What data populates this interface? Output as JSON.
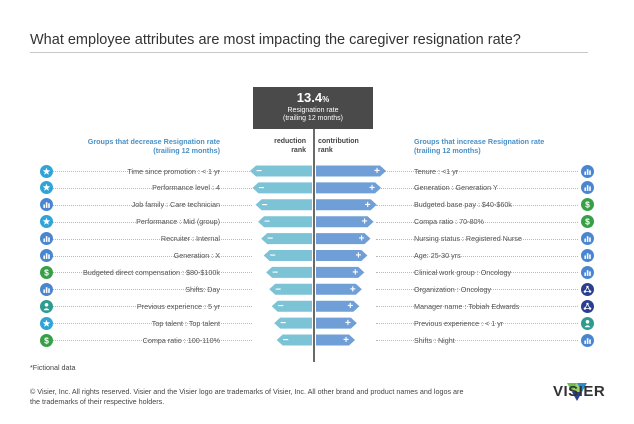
{
  "title": "What employee attributes are most impacting the caregiver resignation rate?",
  "kpi": {
    "value": "13.4",
    "unit": "%",
    "label_line1": "Resignation rate",
    "label_line2": "(trailing 12 months)"
  },
  "headers": {
    "left_group_line1": "Groups that decrease Resignation rate",
    "left_group_line2": "(trailing 12 months)",
    "right_group_line1": "Groups that increase Resignation rate",
    "right_group_line2": "(trailing 12 months)",
    "reduction_line1": "reduction",
    "reduction_line2": "rank",
    "contribution_line1": "contribution",
    "contribution_line2": "rank"
  },
  "colors": {
    "decrease_bar": "#7cc3d6",
    "increase_bar": "#6f9fd6",
    "header_blue": "#4a90c6",
    "icon_star": "#2fa4d8",
    "icon_chart": "#4a86d0",
    "icon_dollar": "#37a047",
    "icon_person": "#2d9b8d",
    "icon_org": "#2a3f8f"
  },
  "chart_data": {
    "type": "bar",
    "title": "What employee attributes are most impacting the caregiver resignation rate?",
    "decrease": {
      "categories": [
        "Time since promotion : < 1 yr",
        "Performance level : 4",
        "Job family : Care technician",
        "Performance : Mid (group)",
        "Recruiter :  Internal",
        "Generation : X",
        "Budgeted direct compensation : $80-$100k",
        "Shifts: Day",
        "Previous experience : 5 yr",
        "Top talent : Top talent",
        "Compa ratio : 100-110%"
      ],
      "values": [
        100,
        96,
        91,
        87,
        82,
        78,
        74,
        69,
        65,
        61,
        57
      ],
      "icons": [
        "star-icon",
        "star-icon",
        "chart-icon",
        "star-icon",
        "chart-icon",
        "chart-icon",
        "dollar-icon",
        "chart-icon",
        "person-icon",
        "star-icon",
        "dollar-icon"
      ]
    },
    "increase": {
      "categories": [
        "Tenure : <1 yr",
        "Generation : Generation Y",
        "Budgeted base pay : $40-$60k",
        "Compa ratio : 70-80%",
        "Nursing status : Registered Nurse",
        "Age: 25-30 yrs",
        "Clinical work group : Oncology",
        "Organization : Oncology",
        "Manager name : Tobiah Edwards",
        "Previous experience : < 1 yr",
        "Shifts : Night"
      ],
      "values": [
        100,
        92,
        85,
        80,
        75,
        70,
        65,
        61,
        57,
        53,
        50
      ],
      "icons": [
        "chart-icon",
        "chart-icon",
        "dollar-icon",
        "dollar-icon",
        "chart-icon",
        "chart-icon",
        "chart-icon",
        "org-icon",
        "org-icon",
        "person-icon",
        "chart-icon"
      ]
    }
  },
  "footnote": "*Fictional data",
  "copyright": "© Visier, Inc. All rights reserved. Visier and the Visier logo are trademarks of Visier, Inc. All other brand and product names and logos are the trademarks of their respective holders.",
  "brand": "VISIER"
}
